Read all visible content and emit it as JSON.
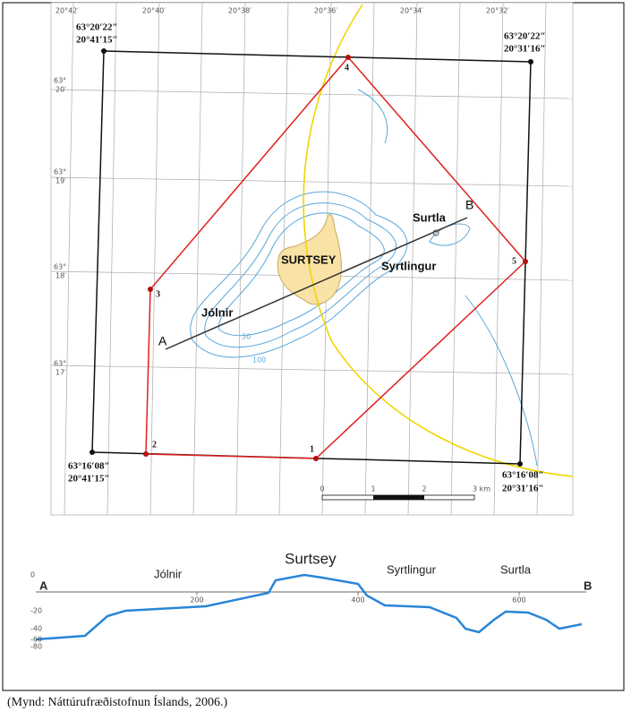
{
  "map": {
    "lon_labels": [
      "20°42′",
      "20°40′",
      "20°38′",
      "20°36′",
      "20°34′",
      "20°32′"
    ],
    "lat_labels": [
      [
        "63°",
        "20′"
      ],
      [
        "63°",
        "19′"
      ],
      [
        "63°",
        "18′"
      ],
      [
        "63°",
        "17′"
      ]
    ],
    "corners": [
      {
        "lat": "63°20′22″",
        "lon": "20°41′15″"
      },
      {
        "lat": "63°20′22″",
        "lon": "20°31′16″"
      },
      {
        "lat": "63°16′08″",
        "lon": "20°41′15″"
      },
      {
        "lat": "63°16′08″",
        "lon": "20°31′16″"
      }
    ],
    "points": [
      "1",
      "2",
      "3",
      "4",
      "5"
    ],
    "places": {
      "surtsey": "SURTSEY",
      "surtla": "Surtla",
      "syrtlingur": "Syrtlingur",
      "jolnir": "Jólnir"
    },
    "ends": [
      "A",
      "B"
    ],
    "contours": [
      "50",
      "100"
    ],
    "scale": [
      "0",
      "1",
      "2",
      "3 km"
    ]
  },
  "profile": {
    "places": {
      "surtsey": "Surtsey",
      "jolnir": "Jólnir",
      "syrtlingur": "Syrtlingur",
      "surtla": "Surtla"
    },
    "ends": [
      "A",
      "B"
    ],
    "x_labels": [
      "200",
      "400",
      "600"
    ],
    "y_labels": [
      "0",
      "-20",
      "-40",
      "-60",
      "-80"
    ]
  },
  "caption": "(Mynd: Náttúrufræðistofnun Íslands, 2006.)"
}
